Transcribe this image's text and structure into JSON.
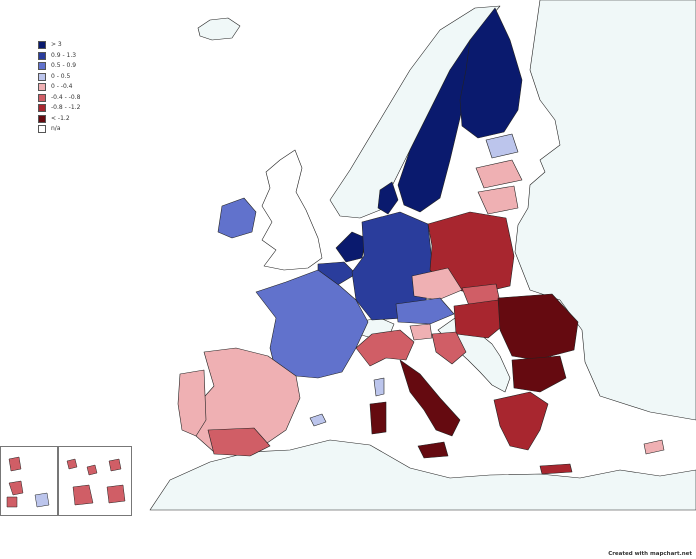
{
  "legend": {
    "items": [
      {
        "label": "> 3",
        "color": "#0a1a6e"
      },
      {
        "label": "0.9 - 1.3",
        "color": "#2a3d9c"
      },
      {
        "label": "0.5 - 0.9",
        "color": "#6172cc"
      },
      {
        "label": "0 - 0.5",
        "color": "#bcc5ec"
      },
      {
        "label": "0 - -0.4",
        "color": "#efb0b3"
      },
      {
        "label": "-0.4 - -0.8",
        "color": "#d05e66"
      },
      {
        "label": "-0.8 - -1.2",
        "color": "#a8262f"
      },
      {
        "label": "< -1.2",
        "color": "#650a10"
      },
      {
        "label": "n/a",
        "color": "#ffffff"
      }
    ]
  },
  "credit": "Created with mapchart.net",
  "colors": {
    "sea": "#ffffff",
    "outside_land": "#f0f8f8",
    "border": "#222222"
  }
}
